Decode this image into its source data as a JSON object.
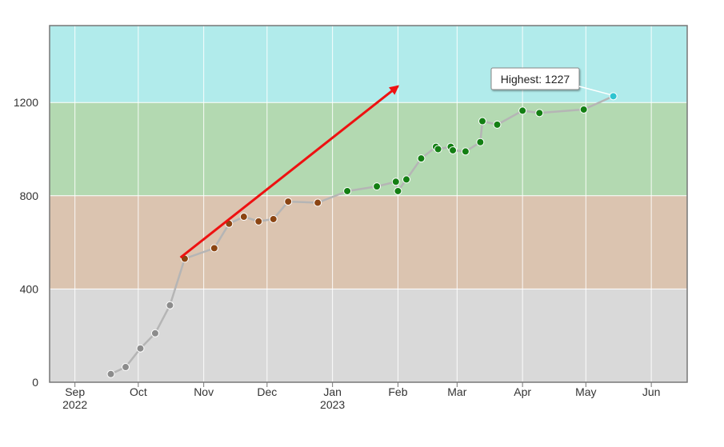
{
  "chart_data": {
    "type": "line",
    "title": "",
    "xlabel": "",
    "ylabel": "",
    "ylim": [
      0,
      1530
    ],
    "xlim": [
      "2022-08-20",
      "2023-06-18"
    ],
    "grid": true,
    "yticks": [
      {
        "value": 0,
        "label": "0"
      },
      {
        "value": 400,
        "label": "400"
      },
      {
        "value": 800,
        "label": "800"
      },
      {
        "value": 1200,
        "label": "1200"
      }
    ],
    "xticks": [
      {
        "date": "2022-09-01",
        "label": "Sep",
        "sublabel": "2022"
      },
      {
        "date": "2022-10-01",
        "label": "Oct",
        "sublabel": ""
      },
      {
        "date": "2022-11-01",
        "label": "Nov",
        "sublabel": ""
      },
      {
        "date": "2022-12-01",
        "label": "Dec",
        "sublabel": ""
      },
      {
        "date": "2023-01-01",
        "label": "Jan",
        "sublabel": "2023"
      },
      {
        "date": "2023-02-01",
        "label": "Feb",
        "sublabel": ""
      },
      {
        "date": "2023-03-01",
        "label": "Mar",
        "sublabel": ""
      },
      {
        "date": "2023-04-01",
        "label": "Apr",
        "sublabel": ""
      },
      {
        "date": "2023-05-01",
        "label": "May",
        "sublabel": ""
      },
      {
        "date": "2023-06-01",
        "label": "Jun",
        "sublabel": ""
      }
    ],
    "bands": [
      {
        "from": 0,
        "to": 400,
        "color": "#d9d9d9"
      },
      {
        "from": 400,
        "to": 800,
        "color": "#dbc4b0"
      },
      {
        "from": 800,
        "to": 1200,
        "color": "#b3d9b1"
      },
      {
        "from": 1200,
        "to": 1530,
        "color": "#b1ebeb"
      }
    ],
    "series": [
      {
        "line_color": "#b5b5b5",
        "points": [
          {
            "x": "2022-09-18",
            "y": 35,
            "color": "#8c8c8c"
          },
          {
            "x": "2022-09-25",
            "y": 65,
            "color": "#8c8c8c"
          },
          {
            "x": "2022-10-02",
            "y": 145,
            "color": "#8c8c8c"
          },
          {
            "x": "2022-10-09",
            "y": 210,
            "color": "#8c8c8c"
          },
          {
            "x": "2022-10-16",
            "y": 330,
            "color": "#8c8c8c"
          },
          {
            "x": "2022-10-23",
            "y": 530,
            "color": "#8b4513"
          },
          {
            "x": "2022-11-06",
            "y": 575,
            "color": "#8b4513"
          },
          {
            "x": "2022-11-13",
            "y": 680,
            "color": "#8b4513"
          },
          {
            "x": "2022-11-20",
            "y": 710,
            "color": "#8b4513"
          },
          {
            "x": "2022-11-27",
            "y": 690,
            "color": "#8b4513"
          },
          {
            "x": "2022-12-04",
            "y": 700,
            "color": "#8b4513"
          },
          {
            "x": "2022-12-11",
            "y": 775,
            "color": "#8b4513"
          },
          {
            "x": "2022-12-25",
            "y": 770,
            "color": "#8b4513"
          },
          {
            "x": "2023-01-08",
            "y": 820,
            "color": "#137f13"
          },
          {
            "x": "2023-01-22",
            "y": 840,
            "color": "#137f13"
          },
          {
            "x": "2023-01-31",
            "y": 860,
            "color": "#137f13"
          },
          {
            "x": "2023-02-01",
            "y": 820,
            "color": "#137f13"
          },
          {
            "x": "2023-02-05",
            "y": 870,
            "color": "#137f13"
          },
          {
            "x": "2023-02-12",
            "y": 960,
            "color": "#137f13"
          },
          {
            "x": "2023-02-19",
            "y": 1010,
            "color": "#137f13"
          },
          {
            "x": "2023-02-20",
            "y": 1000,
            "color": "#137f13"
          },
          {
            "x": "2023-02-26",
            "y": 1010,
            "color": "#137f13"
          },
          {
            "x": "2023-02-27",
            "y": 995,
            "color": "#137f13"
          },
          {
            "x": "2023-03-05",
            "y": 990,
            "color": "#137f13"
          },
          {
            "x": "2023-03-12",
            "y": 1030,
            "color": "#137f13"
          },
          {
            "x": "2023-03-13",
            "y": 1120,
            "color": "#137f13"
          },
          {
            "x": "2023-03-20",
            "y": 1105,
            "color": "#137f13"
          },
          {
            "x": "2023-04-01",
            "y": 1165,
            "color": "#137f13"
          },
          {
            "x": "2023-04-09",
            "y": 1155,
            "color": "#137f13"
          },
          {
            "x": "2023-04-30",
            "y": 1170,
            "color": "#137f13"
          },
          {
            "x": "2023-05-14",
            "y": 1227,
            "color": "#2ec4d0"
          }
        ]
      }
    ],
    "trend_arrow": {
      "from": {
        "x": "2022-10-21",
        "y": 535
      },
      "to": {
        "x": "2023-02-01",
        "y": 1270
      },
      "color": "#ee1111"
    },
    "annotation": {
      "text": "Highest: 1227",
      "x": "2023-05-14",
      "y": 1227
    }
  }
}
